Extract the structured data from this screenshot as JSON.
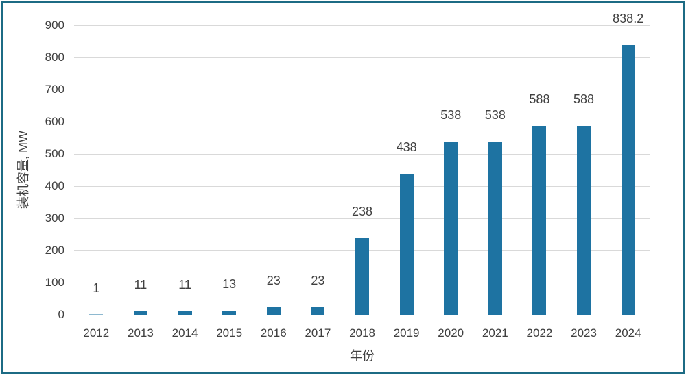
{
  "chart_data": {
    "type": "bar",
    "title": "",
    "categories": [
      "2012",
      "2013",
      "2014",
      "2015",
      "2016",
      "2017",
      "2018",
      "2019",
      "2020",
      "2021",
      "2022",
      "2023",
      "2024"
    ],
    "values": [
      1,
      11,
      11,
      13,
      23,
      23,
      238,
      438,
      538,
      538,
      588,
      588,
      838.2
    ],
    "bar_labels": [
      "1",
      "11",
      "11",
      "13",
      "23",
      "23",
      "238",
      "438",
      "538",
      "538",
      "588",
      "588",
      "838.2"
    ],
    "xlabel": "年份",
    "ylabel": "装机容量, MW",
    "ylim": [
      0,
      900
    ],
    "ytick_step": 100,
    "yticks": [
      "0",
      "100",
      "200",
      "300",
      "400",
      "500",
      "600",
      "700",
      "800",
      "900"
    ],
    "grid": true,
    "legend": "none",
    "bar_color": "#1E73A2",
    "frame_border_color": "#1C6B84",
    "gridline_color": "#D9D9D9",
    "text_color": "#404040",
    "background_color": "#FFFFFF"
  }
}
